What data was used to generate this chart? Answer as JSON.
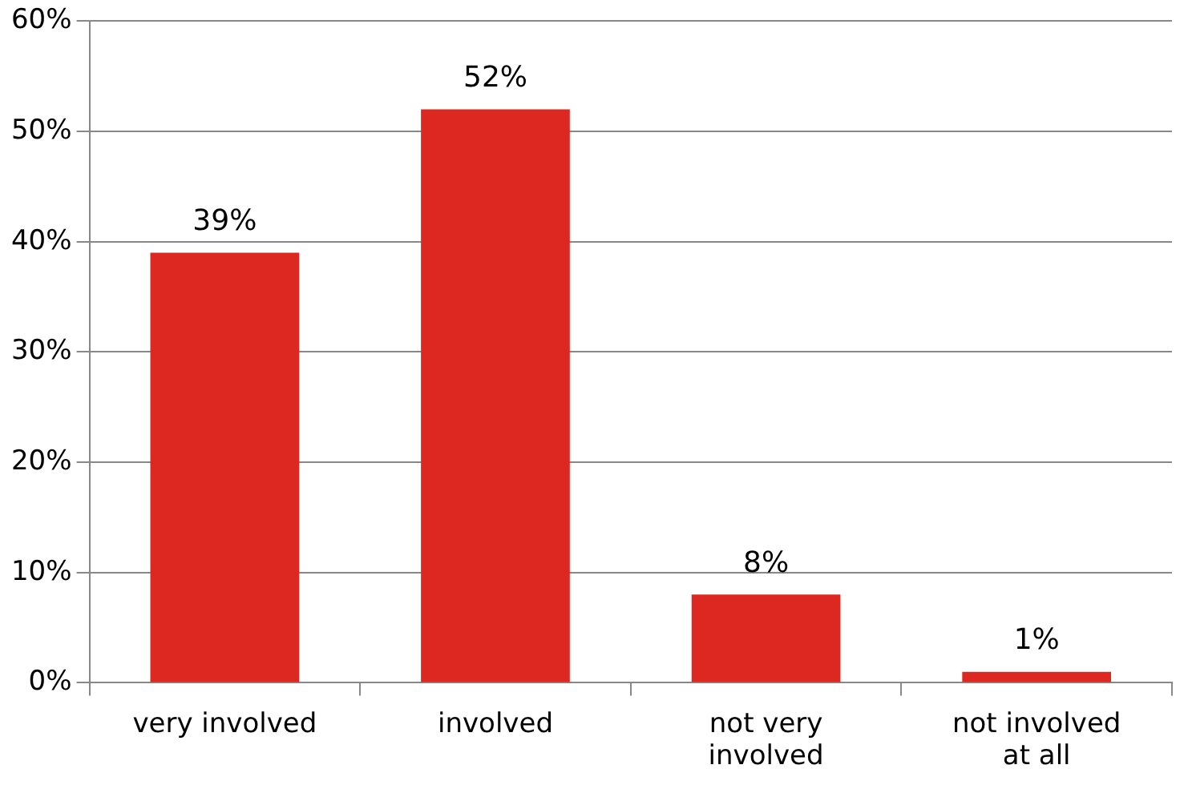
{
  "chart_data": {
    "type": "bar",
    "categories": [
      "very involved",
      "involved",
      "not very involved",
      "not involved at all"
    ],
    "values": [
      39,
      52,
      8,
      1
    ],
    "color": "#dc2820",
    "value_labels": [
      "39%",
      "52%",
      "8%",
      "1%"
    ],
    "ylim": [
      0,
      60
    ],
    "yticks": [
      {
        "value": 0,
        "label": "0%"
      },
      {
        "value": 10,
        "label": "10%"
      },
      {
        "value": 20,
        "label": "20%"
      },
      {
        "value": 30,
        "label": "30%"
      },
      {
        "value": 40,
        "label": "40%"
      },
      {
        "value": 50,
        "label": "50%"
      },
      {
        "value": 60,
        "label": "60%"
      }
    ],
    "grid": "y",
    "legend": false
  }
}
